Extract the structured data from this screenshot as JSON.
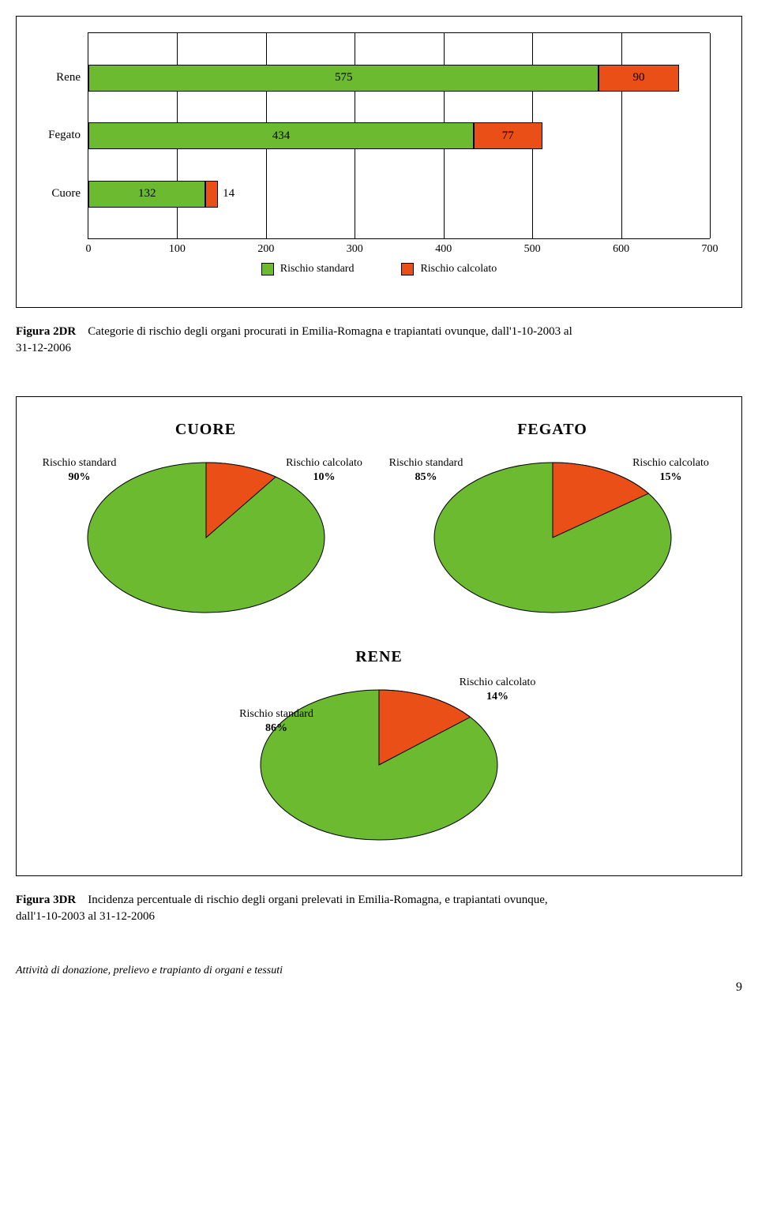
{
  "bar_chart": {
    "type": "stacked_horizontal_bar",
    "x_max": 700,
    "x_tick_step": 100,
    "x_ticks": [
      0,
      100,
      200,
      300,
      400,
      500,
      600,
      700
    ],
    "background_color": "#ffffff",
    "grid_color": "#000000",
    "series": [
      {
        "name": "Rischio standard",
        "color": "#6cba2f",
        "border": "#000000"
      },
      {
        "name": "Rischio calcolato",
        "color": "#ea4f17",
        "border": "#000000"
      }
    ],
    "rows": [
      {
        "label": "Rene",
        "values": [
          575,
          90
        ]
      },
      {
        "label": "Fegato",
        "values": [
          434,
          77
        ]
      },
      {
        "label": "Cuore",
        "values": [
          132,
          14
        ]
      }
    ]
  },
  "caption1": {
    "fig": "Figura 2DR",
    "text_line1": "Categorie di rischio degli organi procurati in Emilia-Romagna e trapiantati ovunque, dall'1-10-2003 al",
    "text_line2": "31-12-2006"
  },
  "pies": {
    "colors": {
      "standard": "#6cba2f",
      "calcolato": "#ea4f17",
      "stroke": "#000000"
    },
    "ellipse_rx": 150,
    "ellipse_ry": 95,
    "items": [
      {
        "title": "CUORE",
        "standard": {
          "label": "Rischio standard",
          "pct": "90%",
          "value": 90
        },
        "calcolato": {
          "label": "Rischio calcolato",
          "pct": "10%",
          "value": 10
        }
      },
      {
        "title": "FEGATO",
        "standard": {
          "label": "Rischio standard",
          "pct": "85%",
          "value": 85
        },
        "calcolato": {
          "label": "Rischio calcolato",
          "pct": "15%",
          "value": 15
        }
      },
      {
        "title": "RENE",
        "standard": {
          "label": "Rischio standard",
          "pct": "86%",
          "value": 86
        },
        "calcolato": {
          "label": "Rischio calcolato",
          "pct": "14%",
          "value": 14
        }
      }
    ]
  },
  "caption2": {
    "fig": "Figura 3DR",
    "text_line1": "Incidenza percentuale di rischio degli organi prelevati in Emilia-Romagna, e trapiantati ovunque,",
    "text_line2": "dall'1-10-2003 al 31-12-2006"
  },
  "footer": {
    "text": "Attività di donazione, prelievo e trapianto di organi e tessuti",
    "page": "9"
  }
}
